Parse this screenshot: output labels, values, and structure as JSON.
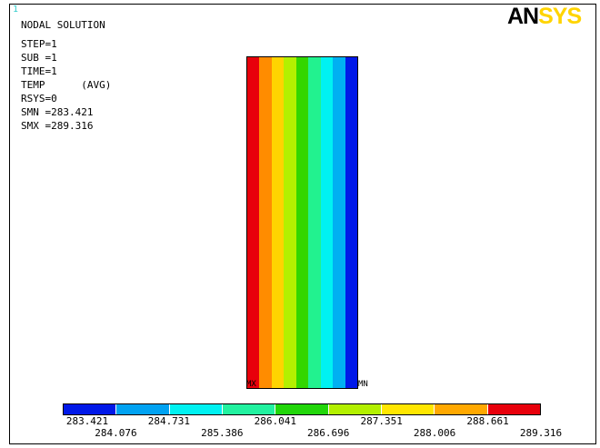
{
  "window_number": "1",
  "plot": {
    "title": "NODAL SOLUTION",
    "info": [
      "STEP=1",
      "SUB =1",
      "TIME=1",
      "TEMP      (AVG)",
      "RSYS=0",
      "SMN =283.421",
      "SMX =289.316"
    ]
  },
  "logo": {
    "part1": "AN",
    "part2": "SYS"
  },
  "nodes": {
    "max_label": "MX",
    "min_label": "MN"
  },
  "contour_bands": [
    "#e8000b",
    "#ff8c00",
    "#ffd400",
    "#b3f000",
    "#33d600",
    "#22f28f",
    "#00f2f2",
    "#00b0f2",
    "#0018e8"
  ],
  "legend": {
    "colors": [
      "#0018e8",
      "#00a2f2",
      "#00f2f2",
      "#22f2a0",
      "#22d60a",
      "#b3f000",
      "#ffe600",
      "#ffa800",
      "#e8000b"
    ],
    "ticks_top_row": [
      "283.421",
      "284.731",
      "286.041",
      "287.351",
      "288.661"
    ],
    "ticks_bottom_row": [
      "284.076",
      "285.386",
      "286.696",
      "288.006",
      "289.316"
    ]
  }
}
